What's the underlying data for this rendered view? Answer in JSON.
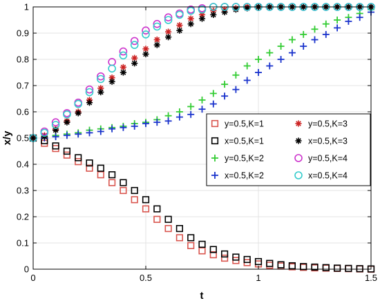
{
  "chart_data": {
    "type": "scatter",
    "xlabel": "t",
    "ylabel": "x/y",
    "xlim": [
      0,
      1.5
    ],
    "ylim": [
      0,
      1
    ],
    "x_ticks": [
      "0",
      "0.5",
      "1",
      "1.5"
    ],
    "y_ticks": [
      "0",
      "0.1",
      "0.2",
      "0.3",
      "0.4",
      "0.5",
      "0.6",
      "0.7",
      "0.8",
      "0.9",
      "1"
    ],
    "grid": true,
    "legend_position": "center-right",
    "legend_columns": 2,
    "x": [
      0,
      0.05,
      0.1,
      0.15,
      0.2,
      0.25,
      0.3,
      0.35,
      0.4,
      0.45,
      0.5,
      0.55,
      0.6,
      0.65,
      0.7,
      0.75,
      0.8,
      0.85,
      0.9,
      0.95,
      1.0,
      1.05,
      1.1,
      1.15,
      1.2,
      1.25,
      1.3,
      1.35,
      1.4,
      1.45,
      1.5
    ],
    "series": [
      {
        "name": "y=0.5,K=1",
        "marker": "square",
        "color": "#d9544d",
        "values": [
          0.5,
          0.48,
          0.46,
          0.435,
          0.41,
          0.385,
          0.36,
          0.33,
          0.3,
          0.265,
          0.23,
          0.19,
          0.155,
          0.12,
          0.09,
          0.07,
          0.055,
          0.042,
          0.033,
          0.025,
          0.02,
          0.015,
          0.012,
          0.009,
          0.007,
          0.005,
          0.004,
          0.003,
          0.002,
          0.001,
          0.0
        ]
      },
      {
        "name": "x=0.5,K=1",
        "marker": "square",
        "color": "#000000",
        "values": [
          0.5,
          0.49,
          0.47,
          0.45,
          0.425,
          0.405,
          0.385,
          0.36,
          0.33,
          0.3,
          0.265,
          0.23,
          0.19,
          0.155,
          0.12,
          0.095,
          0.075,
          0.058,
          0.046,
          0.037,
          0.029,
          0.022,
          0.017,
          0.013,
          0.01,
          0.008,
          0.006,
          0.004,
          0.003,
          0.002,
          0.001
        ]
      },
      {
        "name": "y=0.5,K=2",
        "marker": "plus",
        "color": "#33cc33",
        "values": [
          0.5,
          0.505,
          0.51,
          0.515,
          0.52,
          0.53,
          0.535,
          0.54,
          0.545,
          0.555,
          0.56,
          0.57,
          0.585,
          0.6,
          0.62,
          0.645,
          0.67,
          0.705,
          0.74,
          0.775,
          0.8,
          0.825,
          0.85,
          0.875,
          0.895,
          0.915,
          0.935,
          0.95,
          0.96,
          0.975,
          0.99
        ]
      },
      {
        "name": "x=0.5,K=2",
        "marker": "plus",
        "color": "#1a33cc",
        "values": [
          0.5,
          0.5,
          0.505,
          0.51,
          0.515,
          0.52,
          0.525,
          0.535,
          0.54,
          0.545,
          0.555,
          0.56,
          0.565,
          0.58,
          0.59,
          0.61,
          0.63,
          0.66,
          0.685,
          0.72,
          0.75,
          0.775,
          0.8,
          0.825,
          0.85,
          0.875,
          0.895,
          0.92,
          0.945,
          0.96,
          0.98
        ]
      },
      {
        "name": "y=0.5,K=3",
        "marker": "asterisk",
        "color": "#cc2222",
        "values": [
          0.5,
          0.51,
          0.535,
          0.565,
          0.6,
          0.645,
          0.69,
          0.73,
          0.77,
          0.805,
          0.84,
          0.875,
          0.905,
          0.93,
          0.955,
          0.97,
          0.985,
          0.99,
          0.995,
          1.0,
          1.0,
          1.0,
          1.0,
          1.0,
          1.0,
          1.0,
          1.0,
          1.0,
          1.0,
          1.0,
          1.0
        ]
      },
      {
        "name": "x=0.5,K=3",
        "marker": "asterisk",
        "color": "#000000",
        "values": [
          0.5,
          0.505,
          0.53,
          0.56,
          0.595,
          0.635,
          0.675,
          0.715,
          0.75,
          0.785,
          0.82,
          0.855,
          0.885,
          0.91,
          0.935,
          0.955,
          0.97,
          0.98,
          0.99,
          0.995,
          1.0,
          1.0,
          1.0,
          1.0,
          1.0,
          1.0,
          1.0,
          1.0,
          1.0,
          1.0,
          1.0
        ]
      },
      {
        "name": "y=0.5,K=4",
        "marker": "circle",
        "color": "#cc33cc",
        "values": [
          0.5,
          0.525,
          0.56,
          0.595,
          0.635,
          0.685,
          0.735,
          0.79,
          0.83,
          0.87,
          0.91,
          0.935,
          0.96,
          0.975,
          0.99,
          0.995,
          1.0,
          1.0,
          1.0,
          1.0,
          1.0,
          1.0,
          1.0,
          1.0,
          1.0,
          1.0,
          1.0,
          1.0,
          1.0,
          1.0,
          1.0
        ]
      },
      {
        "name": "x=0.5,K=4",
        "marker": "circle",
        "color": "#33cccc",
        "values": [
          0.5,
          0.52,
          0.55,
          0.59,
          0.63,
          0.675,
          0.725,
          0.765,
          0.815,
          0.855,
          0.895,
          0.925,
          0.95,
          0.97,
          0.985,
          0.99,
          1.0,
          1.0,
          1.0,
          1.0,
          1.0,
          1.0,
          1.0,
          1.0,
          1.0,
          1.0,
          1.0,
          1.0,
          1.0,
          1.0,
          1.0
        ]
      }
    ]
  }
}
